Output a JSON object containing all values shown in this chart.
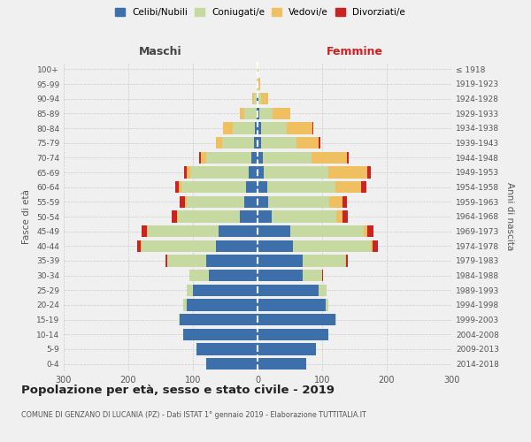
{
  "age_groups": [
    "0-4",
    "5-9",
    "10-14",
    "15-19",
    "20-24",
    "25-29",
    "30-34",
    "35-39",
    "40-44",
    "45-49",
    "50-54",
    "55-59",
    "60-64",
    "65-69",
    "70-74",
    "75-79",
    "80-84",
    "85-89",
    "90-94",
    "95-99",
    "100+"
  ],
  "birth_years": [
    "2014-2018",
    "2009-2013",
    "2004-2008",
    "1999-2003",
    "1994-1998",
    "1989-1993",
    "1984-1988",
    "1979-1983",
    "1974-1978",
    "1969-1973",
    "1964-1968",
    "1959-1963",
    "1954-1958",
    "1949-1953",
    "1944-1948",
    "1939-1943",
    "1934-1938",
    "1929-1933",
    "1924-1928",
    "1919-1923",
    "≤ 1918"
  ],
  "male": {
    "celibi": [
      80,
      95,
      115,
      120,
      110,
      100,
      75,
      80,
      65,
      60,
      28,
      20,
      18,
      14,
      10,
      5,
      4,
      2,
      1,
      0,
      0
    ],
    "coniugati": [
      0,
      0,
      0,
      2,
      5,
      10,
      30,
      60,
      115,
      110,
      95,
      90,
      100,
      90,
      70,
      50,
      35,
      18,
      5,
      1,
      0
    ],
    "vedovi": [
      0,
      0,
      0,
      0,
      0,
      0,
      0,
      0,
      1,
      1,
      2,
      2,
      4,
      5,
      8,
      10,
      15,
      8,
      2,
      0,
      0
    ],
    "divorziati": [
      0,
      0,
      0,
      0,
      0,
      0,
      1,
      2,
      5,
      8,
      8,
      8,
      5,
      5,
      2,
      0,
      0,
      0,
      0,
      0,
      0
    ]
  },
  "female": {
    "nubili": [
      75,
      90,
      110,
      120,
      105,
      95,
      70,
      70,
      55,
      50,
      22,
      16,
      15,
      10,
      8,
      5,
      5,
      3,
      1,
      0,
      0
    ],
    "coniugate": [
      0,
      0,
      0,
      2,
      5,
      12,
      30,
      65,
      120,
      115,
      100,
      95,
      105,
      100,
      75,
      55,
      40,
      20,
      5,
      1,
      0
    ],
    "vedove": [
      0,
      0,
      0,
      0,
      0,
      0,
      0,
      2,
      3,
      5,
      10,
      20,
      40,
      60,
      55,
      35,
      40,
      28,
      10,
      3,
      1
    ],
    "divorziate": [
      0,
      0,
      0,
      0,
      0,
      0,
      1,
      3,
      8,
      10,
      8,
      8,
      8,
      5,
      3,
      2,
      1,
      0,
      0,
      0,
      0
    ]
  },
  "colors": {
    "celibi": "#3d6faa",
    "coniugati": "#c5d9a0",
    "vedovi": "#f0c060",
    "divorziati": "#cc2222"
  },
  "title": "Popolazione per età, sesso e stato civile - 2019",
  "subtitle": "COMUNE DI GENZANO DI LUCANIA (PZ) - Dati ISTAT 1° gennaio 2019 - Elaborazione TUTTITALIA.IT",
  "xlabel_left": "Maschi",
  "xlabel_right": "Femmine",
  "ylabel_left": "Fasce di età",
  "ylabel_right": "Anni di nascita",
  "xlim": 300,
  "background_color": "#f0f0f0",
  "grid_color": "#bbbbbb"
}
